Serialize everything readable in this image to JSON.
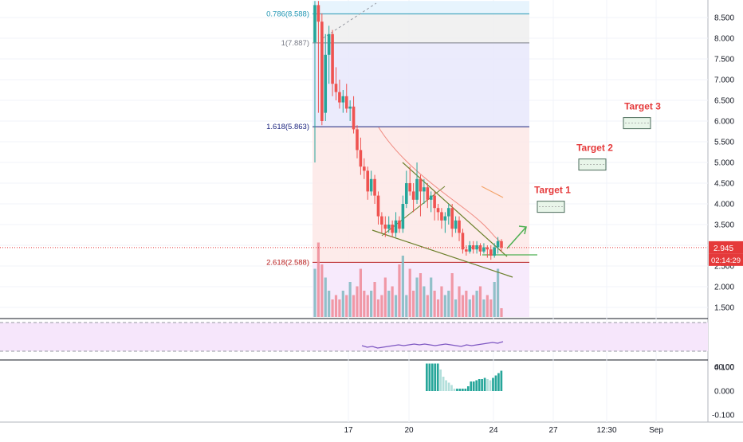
{
  "chart_data": {
    "type": "candlestick",
    "price_axis": {
      "ticks": [
        "8.500",
        "8.000",
        "7.500",
        "7.000",
        "6.500",
        "6.000",
        "5.500",
        "5.000",
        "4.500",
        "4.000",
        "3.500",
        "3.000",
        "2.500",
        "2.000",
        "1.500"
      ],
      "ylim": [
        1.25,
        8.9
      ]
    },
    "time_axis": {
      "ticks": [
        "17",
        "20",
        "24",
        "27",
        "12:30",
        "Sep"
      ]
    },
    "last_price": {
      "value": "2.945",
      "countdown": "02:14:29",
      "color": "#e5393a"
    },
    "fib_levels": [
      {
        "label": "0.786(8.588)",
        "price": 8.588,
        "color": "#2196b3"
      },
      {
        "label": "1(7.887)",
        "price": 7.887,
        "color": "#787b86"
      },
      {
        "label": "1.618(5.863)",
        "price": 5.863,
        "color": "#1a237e"
      },
      {
        "label": "2.618(2.588)",
        "price": 2.588,
        "color": "#b71c1c"
      }
    ],
    "targets": [
      {
        "label": "Target 1",
        "price": 3.93
      },
      {
        "label": "Target 2",
        "price": 4.95
      },
      {
        "label": "Target 3",
        "price": 5.95
      }
    ],
    "candles": [
      [
        7.9,
        8.8,
        8.9,
        5.0
      ],
      [
        8.8,
        8.4,
        8.9,
        6.2
      ],
      [
        8.4,
        6.0,
        8.6,
        5.9
      ],
      [
        6.2,
        7.6,
        8.1,
        6.0
      ],
      [
        7.6,
        8.1,
        8.3,
        6.9
      ],
      [
        8.1,
        6.9,
        8.2,
        6.6
      ],
      [
        6.9,
        6.7,
        7.3,
        6.5
      ],
      [
        6.7,
        6.45,
        7.0,
        6.3
      ],
      [
        6.45,
        6.6,
        6.75,
        6.2
      ],
      [
        6.6,
        6.3,
        6.9,
        6.2
      ],
      [
        6.3,
        6.35,
        6.5,
        6.0
      ],
      [
        6.35,
        5.8,
        6.6,
        5.7
      ],
      [
        5.8,
        5.3,
        5.9,
        5.1
      ],
      [
        5.3,
        4.9,
        5.6,
        4.7
      ],
      [
        4.9,
        4.8,
        5.1,
        4.6
      ],
      [
        4.8,
        4.3,
        4.9,
        4.1
      ],
      [
        4.3,
        4.6,
        4.8,
        4.2
      ],
      [
        4.6,
        4.2,
        4.7,
        4.0
      ],
      [
        4.2,
        3.7,
        4.3,
        3.5
      ],
      [
        3.7,
        3.5,
        3.8,
        3.3
      ],
      [
        3.5,
        3.4,
        3.7,
        3.2
      ],
      [
        3.4,
        3.5,
        3.7,
        3.3
      ],
      [
        3.5,
        3.3,
        3.6,
        3.2
      ],
      [
        3.3,
        3.6,
        3.8,
        3.2
      ],
      [
        3.6,
        3.4,
        3.7,
        3.3
      ],
      [
        3.4,
        4.0,
        4.2,
        3.3
      ],
      [
        4.0,
        4.5,
        4.8,
        3.9
      ],
      [
        4.5,
        4.3,
        4.9,
        4.2
      ],
      [
        4.3,
        4.1,
        4.5,
        3.8
      ],
      [
        4.1,
        4.6,
        5.0,
        4.0
      ],
      [
        4.6,
        4.3,
        4.7,
        3.7
      ],
      [
        4.3,
        4.4,
        4.6,
        4.0
      ],
      [
        4.4,
        4.1,
        4.5,
        3.9
      ],
      [
        4.1,
        4.2,
        4.3,
        3.8
      ],
      [
        4.2,
        3.9,
        4.3,
        3.6
      ],
      [
        3.9,
        3.8,
        4.0,
        3.6
      ],
      [
        3.8,
        3.6,
        3.9,
        3.4
      ],
      [
        3.6,
        3.7,
        3.8,
        3.3
      ],
      [
        3.7,
        3.9,
        4.0,
        3.5
      ],
      [
        3.9,
        3.4,
        4.0,
        3.2
      ],
      [
        3.4,
        3.6,
        3.7,
        3.3
      ],
      [
        3.6,
        3.3,
        3.7,
        3.1
      ],
      [
        3.3,
        2.9,
        3.4,
        2.8
      ],
      [
        2.9,
        2.85,
        3.0,
        2.75
      ],
      [
        2.85,
        3.0,
        3.1,
        2.8
      ],
      [
        3.0,
        2.9,
        3.1,
        2.8
      ],
      [
        2.9,
        3.0,
        3.1,
        2.8
      ],
      [
        3.0,
        2.85,
        3.05,
        2.75
      ],
      [
        2.85,
        2.95,
        3.05,
        2.8
      ],
      [
        2.95,
        2.9,
        3.0,
        2.7
      ],
      [
        2.9,
        2.75,
        3.0,
        2.65
      ],
      [
        2.75,
        2.95,
        3.05,
        2.7
      ],
      [
        2.95,
        3.1,
        3.2,
        2.8
      ],
      [
        3.1,
        2.945,
        3.15,
        2.85
      ]
    ],
    "volume": [
      0.55,
      0.85,
      0.6,
      0.45,
      0.3,
      0.2,
      0.25,
      0.2,
      0.3,
      0.25,
      0.4,
      0.25,
      0.35,
      0.55,
      0.3,
      0.25,
      0.3,
      0.4,
      0.2,
      0.25,
      0.45,
      0.3,
      0.35,
      0.25,
      0.6,
      0.7,
      0.25,
      0.55,
      0.3,
      0.45,
      0.5,
      0.35,
      0.25,
      0.45,
      0.3,
      0.2,
      0.35,
      0.25,
      0.3,
      0.5,
      0.2,
      0.35,
      0.25,
      0.3,
      0.2,
      0.25,
      0.3,
      0.35,
      0.2,
      0.25,
      0.2,
      0.4,
      0.55,
      0.1
    ],
    "rsi": {
      "ticks": [
        "40.00"
      ],
      "line": [
        37,
        35,
        36,
        34,
        35,
        36,
        37,
        38,
        37,
        38,
        39,
        38,
        39,
        38,
        37,
        38,
        39,
        38,
        37,
        36,
        38,
        37,
        38,
        39,
        40,
        41,
        40,
        42
      ]
    },
    "macd": {
      "ticks": [
        "0.100",
        "0.000",
        "-0.100"
      ],
      "histogram": [
        0.115,
        0.115,
        0.115,
        0.115,
        0.115,
        0.09,
        0.06,
        0.045,
        0.035,
        0.025,
        0.01,
        0.01,
        0.01,
        0.01,
        0.01,
        0.02,
        0.04,
        0.04,
        0.045,
        0.05,
        0.05,
        0.055,
        0.05,
        0.045,
        0.055,
        0.065,
        0.075,
        0.085
      ]
    }
  }
}
